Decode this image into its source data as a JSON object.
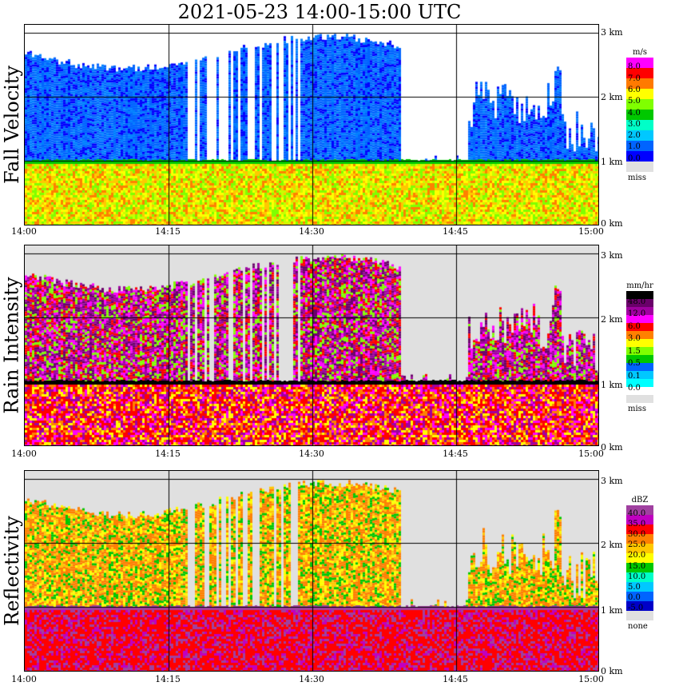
{
  "title": "2021-05-23   14:00-15:00 UTC",
  "x_ticks": [
    "14:00",
    "14:15",
    "14:30",
    "14:45",
    "15:00"
  ],
  "y_ticks": [
    "3 km",
    "2 km",
    "1 km",
    "0 km"
  ],
  "chart_data": [
    {
      "type": "heatmap",
      "ylabel": "Fall Velocity",
      "xlabel": "",
      "x_range": [
        "14:00",
        "15:00"
      ],
      "y_range_km": [
        0,
        3.1
      ],
      "legend": {
        "unit": "m/s",
        "labels": [
          "8.0",
          "7.0",
          "6.0",
          "5.0",
          "4.0",
          "3.0",
          "2.0",
          "1.0",
          "0.0",
          "miss"
        ],
        "colors": [
          "#ff00ff",
          "#ff0000",
          "#ff7a00",
          "#ffff00",
          "#80ff00",
          "#00c800",
          "#00ffc8",
          "#00c8ff",
          "#0064ff",
          "#0000ff",
          "#e0e0e0"
        ]
      }
    },
    {
      "type": "heatmap",
      "ylabel": "Rain Intensity",
      "xlabel": "",
      "x_range": [
        "14:00",
        "15:00"
      ],
      "y_range_km": [
        0,
        3.1
      ],
      "legend": {
        "unit": "mm/hr",
        "labels": [
          "48.0",
          "12.0",
          "6.0",
          "3.0",
          "1.5",
          "0.5",
          "0.1",
          "0.0",
          "miss"
        ],
        "colors": [
          "#000000",
          "#6a006a",
          "#a000a0",
          "#ff00ff",
          "#ff0000",
          "#ff8000",
          "#ffff00",
          "#80ff00",
          "#00c800",
          "#0064ff",
          "#00c8ff",
          "#00ffff",
          "#ffffff",
          "#e0e0e0"
        ]
      }
    },
    {
      "type": "heatmap",
      "ylabel": "Reflectivity",
      "xlabel": "",
      "x_range": [
        "14:00",
        "15:00"
      ],
      "y_range_km": [
        0,
        3.1
      ],
      "legend": {
        "unit": "dBZ",
        "labels": [
          "40.0",
          "35.0",
          "30.0",
          "25.0",
          "20.0",
          "15.0",
          "10.0",
          "5.0",
          "0.0",
          "-5.0",
          "none"
        ],
        "colors": [
          "#a040a0",
          "#c000c0",
          "#ff0000",
          "#ff8000",
          "#ffc800",
          "#ffff00",
          "#00c800",
          "#00ffc8",
          "#00c8ff",
          "#0064ff",
          "#0000c8",
          "#e0e0e0"
        ]
      }
    }
  ]
}
